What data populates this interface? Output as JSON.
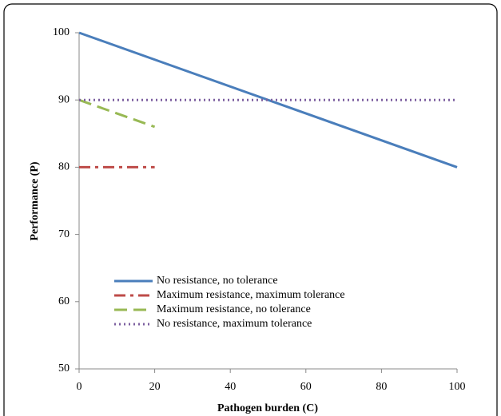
{
  "chart_data": {
    "type": "line",
    "x_label": "Pathogen burden (C)",
    "y_label": "Performance (P)",
    "xlim": [
      0,
      100
    ],
    "xticks": [
      0,
      20,
      40,
      60,
      80,
      100
    ],
    "ylim": [
      50,
      100
    ],
    "yticks": [
      50,
      60,
      70,
      80,
      90,
      100
    ],
    "legend": "lower left",
    "series": [
      {
        "name": "No resistance, no tolerance",
        "color": "#4a7ebb",
        "style": "solid",
        "x": [
          0,
          100
        ],
        "values": [
          100,
          80
        ]
      },
      {
        "name": "Maximum resistance, maximum tolerance",
        "color": "#be4b48",
        "style": "dashdot",
        "x": [
          0,
          20
        ],
        "values": [
          80,
          80
        ]
      },
      {
        "name": "Maximum resistance, no tolerance",
        "color": "#98b954",
        "style": "dashed",
        "x": [
          0,
          20
        ],
        "values": [
          90,
          86
        ]
      },
      {
        "name": "No resistance, maximum tolerance",
        "color": "#7d60a0",
        "style": "dotted",
        "x": [
          0,
          100
        ],
        "values": [
          90,
          90
        ]
      }
    ]
  }
}
